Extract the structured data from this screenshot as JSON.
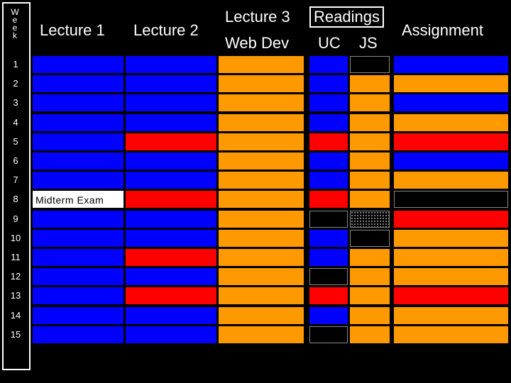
{
  "headers": {
    "week_letters": [
      "W",
      "e",
      "e",
      "k"
    ],
    "lecture1": "Lecture 1",
    "lecture2": "Lecture 2",
    "lecture3": "Lecture 3",
    "lecture3_sub": "Web Dev",
    "readings": "Readings",
    "readings_uc": "UC",
    "readings_js": "JS",
    "assignment": "Assignment"
  },
  "colors": {
    "blue": "#0000ff",
    "orange": "#ff9900",
    "red": "#ff0000",
    "black": "#000000",
    "white": "#ffffff",
    "dots": "dotted"
  },
  "weeks": [
    {
      "week": "1",
      "lecture1": "blue",
      "lecture2": "blue",
      "lecture3": "orange",
      "uc": "blue",
      "js": "black",
      "assignment": "blue"
    },
    {
      "week": "2",
      "lecture1": "blue",
      "lecture2": "blue",
      "lecture3": "orange",
      "uc": "blue",
      "js": "orange",
      "assignment": "orange"
    },
    {
      "week": "3",
      "lecture1": "blue",
      "lecture2": "blue",
      "lecture3": "orange",
      "uc": "blue",
      "js": "orange",
      "assignment": "blue"
    },
    {
      "week": "4",
      "lecture1": "blue",
      "lecture2": "blue",
      "lecture3": "orange",
      "uc": "blue",
      "js": "orange",
      "assignment": "orange"
    },
    {
      "week": "5",
      "lecture1": "blue",
      "lecture2": "red",
      "lecture3": "orange",
      "uc": "red",
      "js": "orange",
      "assignment": "red"
    },
    {
      "week": "6",
      "lecture1": "blue",
      "lecture2": "blue",
      "lecture3": "orange",
      "uc": "blue",
      "js": "orange",
      "assignment": "blue"
    },
    {
      "week": "7",
      "lecture1": "blue",
      "lecture2": "blue",
      "lecture3": "orange",
      "uc": "blue",
      "js": "orange",
      "assignment": "orange"
    },
    {
      "week": "8",
      "lecture1": "white",
      "lecture1_text": "Midterm Exam",
      "lecture2": "red",
      "lecture3": "orange",
      "uc": "red",
      "js": "orange",
      "assignment": "black"
    },
    {
      "week": "9",
      "lecture1": "blue",
      "lecture2": "blue",
      "lecture3": "orange",
      "uc": "black",
      "js": "dots",
      "assignment": "red"
    },
    {
      "week": "10",
      "lecture1": "blue",
      "lecture2": "blue",
      "lecture3": "orange",
      "uc": "blue",
      "js": "black",
      "assignment": "orange"
    },
    {
      "week": "11",
      "lecture1": "blue",
      "lecture2": "red",
      "lecture3": "orange",
      "uc": "blue",
      "js": "orange",
      "assignment": "orange"
    },
    {
      "week": "12",
      "lecture1": "blue",
      "lecture2": "blue",
      "lecture3": "orange",
      "uc": "black",
      "js": "orange",
      "assignment": "orange"
    },
    {
      "week": "13",
      "lecture1": "blue",
      "lecture2": "red",
      "lecture3": "orange",
      "uc": "red",
      "js": "orange",
      "assignment": "red"
    },
    {
      "week": "14",
      "lecture1": "blue",
      "lecture2": "blue",
      "lecture3": "orange",
      "uc": "blue",
      "js": "orange",
      "assignment": "orange"
    },
    {
      "week": "15",
      "lecture1": "blue",
      "lecture2": "blue",
      "lecture3": "orange",
      "uc": "black",
      "js": "orange",
      "assignment": "orange"
    }
  ]
}
